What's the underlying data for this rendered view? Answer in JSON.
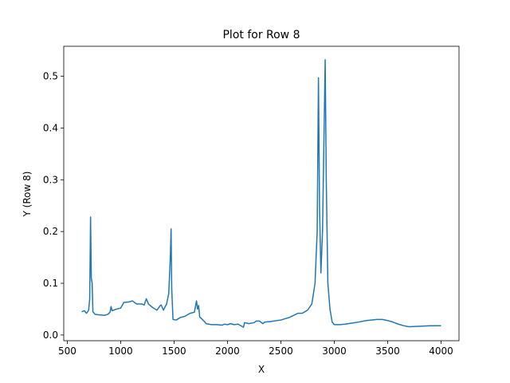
{
  "chart_data": {
    "type": "line",
    "title": "Plot for Row 8",
    "xlabel": "X",
    "ylabel": "Y (Row 8)",
    "x": [
      635,
      660,
      680,
      700,
      710,
      718,
      725,
      733,
      740,
      760,
      800,
      850,
      880,
      900,
      910,
      920,
      960,
      1000,
      1030,
      1080,
      1110,
      1150,
      1200,
      1220,
      1240,
      1260,
      1300,
      1340,
      1370,
      1380,
      1400,
      1430,
      1450,
      1465,
      1472,
      1478,
      1490,
      1520,
      1560,
      1600,
      1650,
      1690,
      1710,
      1720,
      1730,
      1740,
      1780,
      1800,
      1850,
      1900,
      1950,
      1970,
      2000,
      2030,
      2060,
      2100,
      2150,
      2160,
      2200,
      2250,
      2270,
      2300,
      2330,
      2350,
      2400,
      2500,
      2580,
      2620,
      2660,
      2700,
      2750,
      2790,
      2820,
      2840,
      2852,
      2862,
      2875,
      2890,
      2905,
      2915,
      2925,
      2940,
      2960,
      2980,
      3000,
      3050,
      3100,
      3200,
      3300,
      3400,
      3450,
      3500,
      3550,
      3600,
      3650,
      3700,
      3800,
      3900,
      4000
    ],
    "series": [
      {
        "name": "Row 8",
        "color": "#1f77b4",
        "values": [
          0.045,
          0.047,
          0.042,
          0.048,
          0.07,
          0.228,
          0.11,
          0.1,
          0.045,
          0.04,
          0.039,
          0.038,
          0.04,
          0.044,
          0.055,
          0.047,
          0.05,
          0.052,
          0.063,
          0.064,
          0.066,
          0.06,
          0.06,
          0.058,
          0.07,
          0.06,
          0.053,
          0.048,
          0.057,
          0.058,
          0.048,
          0.06,
          0.08,
          0.15,
          0.205,
          0.09,
          0.03,
          0.029,
          0.034,
          0.036,
          0.042,
          0.044,
          0.066,
          0.05,
          0.057,
          0.035,
          0.027,
          0.022,
          0.02,
          0.02,
          0.019,
          0.021,
          0.02,
          0.022,
          0.02,
          0.021,
          0.015,
          0.024,
          0.022,
          0.024,
          0.027,
          0.027,
          0.022,
          0.025,
          0.026,
          0.029,
          0.034,
          0.038,
          0.042,
          0.042,
          0.048,
          0.06,
          0.1,
          0.2,
          0.497,
          0.25,
          0.12,
          0.2,
          0.4,
          0.532,
          0.3,
          0.1,
          0.05,
          0.025,
          0.02,
          0.02,
          0.021,
          0.024,
          0.028,
          0.03,
          0.03,
          0.028,
          0.025,
          0.021,
          0.018,
          0.016,
          0.017,
          0.018,
          0.018
        ]
      }
    ],
    "xlim": [
      467,
      4168
    ],
    "ylim": [
      -0.011,
      0.558
    ],
    "xticks": [
      500,
      1000,
      1500,
      2000,
      2500,
      3000,
      3500,
      4000
    ],
    "yticks": [
      {
        "value": 0,
        "label": "0.0"
      },
      0.1,
      0.2,
      0.3,
      0.4,
      0.5
    ]
  }
}
